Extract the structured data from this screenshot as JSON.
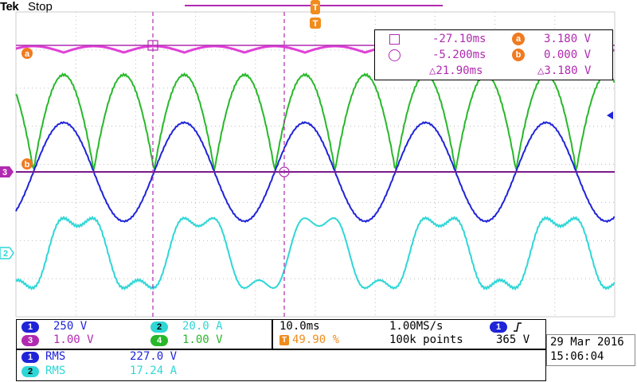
{
  "header": {
    "brand": "Tek",
    "status": "Stop"
  },
  "trigger": {
    "marker": "T",
    "position_label": "T"
  },
  "cursors": {
    "row1": {
      "symbol": "square",
      "time": "-27.10ms",
      "ch_badge": "a",
      "value": "3.180 V"
    },
    "row2": {
      "symbol": "circle",
      "time": "-5.200ms",
      "ch_badge": "b",
      "value": "0.000 V"
    },
    "delta_time": "△21.90ms",
    "delta_value": "△3.180 V"
  },
  "channels": [
    {
      "num": "1",
      "scale": "250 V",
      "color": "#1f24d8"
    },
    {
      "num": "2",
      "scale": "20.0 A",
      "color": "#2fd6d6"
    },
    {
      "num": "3",
      "scale": "1.00 V",
      "color": "#b02ab0"
    },
    {
      "num": "4",
      "scale": "1.00 V",
      "color": "#28b82a"
    }
  ],
  "timebase": {
    "time_div": "10.0ms",
    "sample_rate": "1.00MS/s",
    "trigger_pos": "49.90 %",
    "record": "100k points",
    "trig_channel": "1",
    "trig_slope_icon": "rising-edge-icon",
    "trig_level": "365 V"
  },
  "date": {
    "day": "29 Mar 2016",
    "time": "15:06:04"
  },
  "measurements": [
    {
      "ch": "1",
      "type": "RMS",
      "value": "227.0 V"
    },
    {
      "ch": "2",
      "type": "RMS",
      "value": "17.24 A"
    }
  ],
  "left_markers": {
    "ch3": "3",
    "ch2": "2",
    "ref_a": "a",
    "ref_b": "b"
  },
  "colors": {
    "ch1": "#1f24d8",
    "ch2": "#2fd6d6",
    "ch3": "#b02ab0",
    "ch4": "#28b82a",
    "ref_a": "#e040d8",
    "cursor": "#b02ab0",
    "accent": "#f08c1e",
    "cursor_badge": "#f07a20"
  }
}
